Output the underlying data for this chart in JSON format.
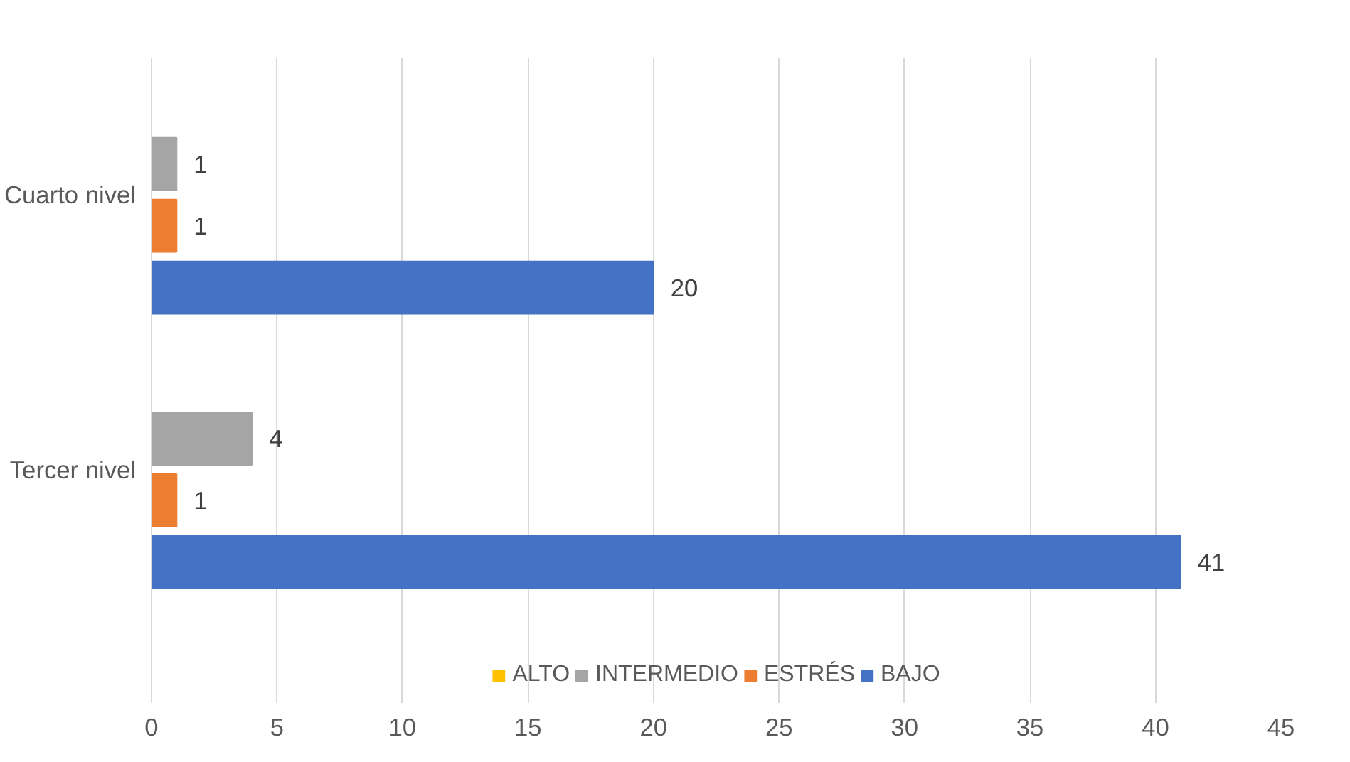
{
  "chart_data": {
    "type": "bar",
    "orientation": "horizontal",
    "categories": [
      "Cuarto nivel",
      "Tercer nivel"
    ],
    "series": [
      {
        "name": "ALTO",
        "color": "#ffc000",
        "values": [
          null,
          null
        ]
      },
      {
        "name": "INTERMEDIO",
        "color": "#a5a5a5",
        "values": [
          1,
          4
        ]
      },
      {
        "name": "ESTRÉS",
        "color": "#ed7d31",
        "values": [
          1,
          1
        ]
      },
      {
        "name": "BAJO",
        "color": "#4472c4",
        "values": [
          20,
          41
        ]
      }
    ],
    "xlim": [
      0,
      45
    ],
    "xticks": [
      0,
      5,
      10,
      15,
      20,
      25,
      30,
      35,
      40,
      45
    ],
    "grid": "x",
    "legend": "bottom",
    "data_labels": true
  }
}
